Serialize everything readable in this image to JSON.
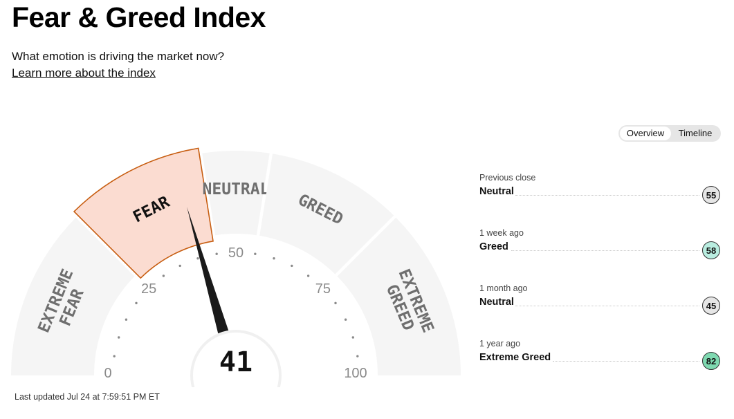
{
  "header": {
    "title": "Fear & Greed Index",
    "subtitle": "What emotion is driving the market now?",
    "learn_more": "Learn more about the index"
  },
  "view_toggle": {
    "options": [
      "Overview",
      "Timeline"
    ],
    "selected": "Overview"
  },
  "gauge": {
    "value": 41,
    "current_rating": "Fear",
    "segments": [
      {
        "label_lines": [
          "EXTREME",
          "FEAR"
        ],
        "range": [
          0,
          25
        ]
      },
      {
        "label_lines": [
          "FEAR"
        ],
        "range": [
          25,
          45
        ]
      },
      {
        "label_lines": [
          "NEUTRAL"
        ],
        "range": [
          45,
          55
        ]
      },
      {
        "label_lines": [
          "GREED"
        ],
        "range": [
          55,
          75
        ]
      },
      {
        "label_lines": [
          "EXTREME",
          "GREED"
        ],
        "range": [
          75,
          100
        ]
      }
    ],
    "ticks": [
      "0",
      "25",
      "50",
      "75",
      "100"
    ],
    "colors": {
      "segment": "#f5f5f5",
      "active_fill": "#fbdcd1",
      "active_stroke": "#c75d10",
      "needle": "#1a1a1a",
      "label": "#6f6f6f"
    }
  },
  "last_updated": "Last updated Jul 24 at 7:59:51 PM ET",
  "history": [
    {
      "label": "Previous close",
      "rating": "Neutral",
      "value": "55",
      "color": "#e6e6e6"
    },
    {
      "label": "1 week ago",
      "rating": "Greed",
      "value": "58",
      "color": "#b9ede0"
    },
    {
      "label": "1 month ago",
      "rating": "Neutral",
      "value": "45",
      "color": "#e6e6e6"
    },
    {
      "label": "1 year ago",
      "rating": "Extreme Greed",
      "value": "82",
      "color": "#7fd9b1"
    }
  ]
}
